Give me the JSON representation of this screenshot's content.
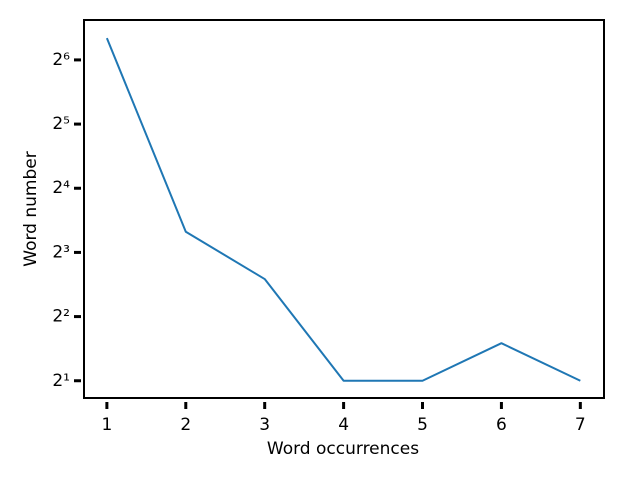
{
  "chart_data": {
    "type": "line",
    "x": [
      1,
      2,
      3,
      4,
      5,
      6,
      7
    ],
    "values": [
      81,
      10,
      6,
      2,
      2,
      3,
      2
    ],
    "color": "#1f77b4",
    "xlabel": "Word occurrences",
    "ylabel": "Word number",
    "xlim": [
      0.71,
      7.3
    ],
    "xticks": [
      1,
      2,
      3,
      4,
      5,
      6,
      7
    ],
    "ylim": [
      1.66,
      98.5
    ],
    "yscale": "log",
    "log_base": 2,
    "yticks": [
      {
        "value": 2,
        "label": "2¹"
      },
      {
        "value": 4,
        "label": "2²"
      },
      {
        "value": 8,
        "label": "2³"
      },
      {
        "value": 16,
        "label": "2⁴"
      },
      {
        "value": 32,
        "label": "2⁵"
      },
      {
        "value": 64,
        "label": "2⁶"
      }
    ],
    "grid": false
  }
}
